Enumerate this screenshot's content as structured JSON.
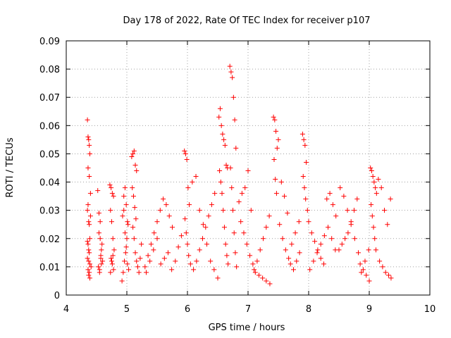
{
  "chart_data": {
    "type": "scatter",
    "title": "Day 178 of 2022, Rate Of TEC Index for receiver p107",
    "xlabel": "GPS time / hours",
    "ylabel": "ROTI / TECUs",
    "xlim": [
      4,
      10
    ],
    "ylim": [
      0,
      0.09
    ],
    "x_ticks": [
      "4",
      "5",
      "6",
      "7",
      "8",
      "9",
      "10"
    ],
    "y_ticks": [
      "0",
      "0.01",
      "0.02",
      "0.03",
      "0.04",
      "0.05",
      "0.06",
      "0.07",
      "0.08",
      "0.09"
    ],
    "grid": true,
    "marker": "plus",
    "series_color": "#ff0000",
    "series": [
      {
        "x": [
          4.35,
          4.36,
          4.37,
          4.38,
          4.39,
          4.36,
          4.38,
          4.4,
          4.35,
          4.37,
          4.39,
          4.36,
          4.38,
          4.35,
          4.37,
          4.39,
          4.41,
          4.36,
          4.38,
          4.37,
          4.39,
          4.4,
          4.36,
          4.38,
          4.35,
          4.37,
          4.52,
          4.54,
          4.56,
          4.58,
          4.6,
          4.53,
          4.55,
          4.57,
          4.59,
          4.54,
          4.56,
          4.58,
          4.55,
          4.57,
          4.72,
          4.74,
          4.76,
          4.78,
          4.73,
          4.75,
          4.77,
          4.79,
          4.74,
          4.76,
          4.78,
          4.73,
          4.75,
          4.77,
          4.92,
          4.94,
          4.96,
          4.98,
          5.0,
          5.02,
          4.93,
          4.95,
          4.97,
          4.99,
          5.01,
          5.03,
          4.95,
          4.97,
          4.99,
          5.01,
          5.08,
          5.1,
          5.12,
          5.14,
          5.16,
          5.09,
          5.11,
          5.13,
          5.15,
          5.1,
          5.12,
          5.14,
          5.16,
          5.18,
          5.2,
          5.22,
          5.24,
          5.3,
          5.35,
          5.4,
          5.45,
          5.5,
          5.55,
          5.6,
          5.65,
          5.7,
          5.75,
          5.32,
          5.38,
          5.44,
          5.5,
          5.56,
          5.62,
          5.68,
          5.74,
          5.8,
          5.85,
          5.9,
          5.95,
          5.97,
          5.99,
          6.01,
          6.03,
          5.96,
          5.98,
          6.0,
          6.02,
          6.05,
          6.1,
          6.15,
          6.2,
          6.25,
          6.3,
          6.35,
          6.4,
          6.45,
          6.08,
          6.14,
          6.2,
          6.26,
          6.32,
          6.38,
          6.44,
          6.5,
          6.52,
          6.54,
          6.56,
          6.58,
          6.6,
          6.62,
          6.64,
          6.66,
          6.53,
          6.55,
          6.57,
          6.59,
          6.61,
          6.63,
          6.65,
          6.67,
          6.7,
          6.72,
          6.74,
          6.76,
          6.78,
          6.8,
          6.71,
          6.73,
          6.75,
          6.77,
          6.79,
          6.81,
          6.85,
          6.9,
          6.95,
          7.0,
          7.05,
          6.88,
          6.93,
          6.98,
          7.03,
          7.08,
          7.1,
          7.15,
          7.2,
          7.25,
          7.3,
          7.35,
          7.12,
          7.18,
          7.24,
          7.3,
          7.36,
          7.42,
          7.44,
          7.46,
          7.48,
          7.43,
          7.45,
          7.47,
          7.5,
          7.55,
          7.6,
          7.65,
          7.52,
          7.57,
          7.62,
          7.67,
          7.7,
          7.75,
          7.8,
          7.85,
          7.72,
          7.78,
          7.84,
          7.9,
          7.92,
          7.94,
          7.96,
          7.91,
          7.93,
          7.95,
          7.98,
          8.0,
          8.05,
          8.1,
          8.15,
          8.2,
          8.25,
          8.02,
          8.08,
          8.14,
          8.2,
          8.26,
          8.3,
          8.35,
          8.4,
          8.45,
          8.32,
          8.38,
          8.44,
          8.5,
          8.55,
          8.6,
          8.65,
          8.7,
          8.75,
          8.8,
          8.52,
          8.58,
          8.64,
          8.7,
          8.76,
          8.82,
          8.85,
          8.9,
          8.95,
          9.0,
          8.87,
          8.93,
          8.99,
          9.02,
          9.04,
          9.06,
          9.08,
          9.1,
          9.12,
          9.03,
          9.05,
          9.07,
          9.09,
          9.11,
          9.15,
          9.2,
          9.25,
          9.3,
          9.35,
          9.17,
          9.22,
          9.27,
          9.32,
          9.36
        ],
        "y": [
          0.062,
          0.056,
          0.055,
          0.053,
          0.05,
          0.045,
          0.042,
          0.036,
          0.03,
          0.026,
          0.02,
          0.018,
          0.015,
          0.013,
          0.012,
          0.011,
          0.01,
          0.009,
          0.008,
          0.007,
          0.006,
          0.028,
          0.032,
          0.025,
          0.019,
          0.016,
          0.037,
          0.029,
          0.02,
          0.016,
          0.012,
          0.01,
          0.008,
          0.014,
          0.018,
          0.022,
          0.026,
          0.011,
          0.009,
          0.013,
          0.039,
          0.038,
          0.036,
          0.035,
          0.03,
          0.026,
          0.02,
          0.016,
          0.013,
          0.011,
          0.009,
          0.008,
          0.012,
          0.014,
          0.005,
          0.008,
          0.012,
          0.015,
          0.02,
          0.025,
          0.028,
          0.03,
          0.022,
          0.017,
          0.011,
          0.009,
          0.035,
          0.038,
          0.032,
          0.026,
          0.049,
          0.05,
          0.051,
          0.046,
          0.044,
          0.038,
          0.035,
          0.031,
          0.027,
          0.024,
          0.02,
          0.015,
          0.012,
          0.01,
          0.008,
          0.013,
          0.018,
          0.01,
          0.014,
          0.018,
          0.022,
          0.026,
          0.03,
          0.034,
          0.032,
          0.028,
          0.024,
          0.008,
          0.012,
          0.016,
          0.02,
          0.011,
          0.013,
          0.015,
          0.009,
          0.012,
          0.017,
          0.021,
          0.051,
          0.05,
          0.048,
          0.038,
          0.032,
          0.027,
          0.022,
          0.018,
          0.014,
          0.011,
          0.009,
          0.012,
          0.016,
          0.02,
          0.024,
          0.028,
          0.032,
          0.036,
          0.04,
          0.042,
          0.03,
          0.025,
          0.018,
          0.012,
          0.009,
          0.006,
          0.063,
          0.066,
          0.06,
          0.057,
          0.055,
          0.053,
          0.046,
          0.045,
          0.044,
          0.04,
          0.036,
          0.03,
          0.024,
          0.018,
          0.014,
          0.011,
          0.081,
          0.079,
          0.077,
          0.07,
          0.062,
          0.052,
          0.045,
          0.038,
          0.03,
          0.022,
          0.015,
          0.01,
          0.033,
          0.036,
          0.038,
          0.044,
          0.03,
          0.026,
          0.022,
          0.018,
          0.014,
          0.011,
          0.009,
          0.012,
          0.016,
          0.02,
          0.024,
          0.028,
          0.008,
          0.007,
          0.006,
          0.005,
          0.004,
          0.063,
          0.062,
          0.058,
          0.052,
          0.048,
          0.041,
          0.036,
          0.055,
          0.04,
          0.035,
          0.029,
          0.025,
          0.02,
          0.016,
          0.013,
          0.011,
          0.009,
          0.012,
          0.015,
          0.018,
          0.022,
          0.026,
          0.057,
          0.055,
          0.053,
          0.047,
          0.042,
          0.038,
          0.034,
          0.03,
          0.026,
          0.022,
          0.019,
          0.016,
          0.013,
          0.011,
          0.009,
          0.012,
          0.015,
          0.018,
          0.021,
          0.034,
          0.036,
          0.032,
          0.028,
          0.024,
          0.02,
          0.016,
          0.016,
          0.018,
          0.02,
          0.022,
          0.026,
          0.03,
          0.034,
          0.038,
          0.035,
          0.03,
          0.025,
          0.02,
          0.015,
          0.011,
          0.009,
          0.007,
          0.005,
          0.008,
          0.012,
          0.016,
          0.045,
          0.044,
          0.042,
          0.04,
          0.038,
          0.036,
          0.032,
          0.028,
          0.024,
          0.02,
          0.016,
          0.041,
          0.038,
          0.03,
          0.025,
          0.034,
          0.012,
          0.01,
          0.008,
          0.007,
          0.006
        ]
      }
    ]
  }
}
